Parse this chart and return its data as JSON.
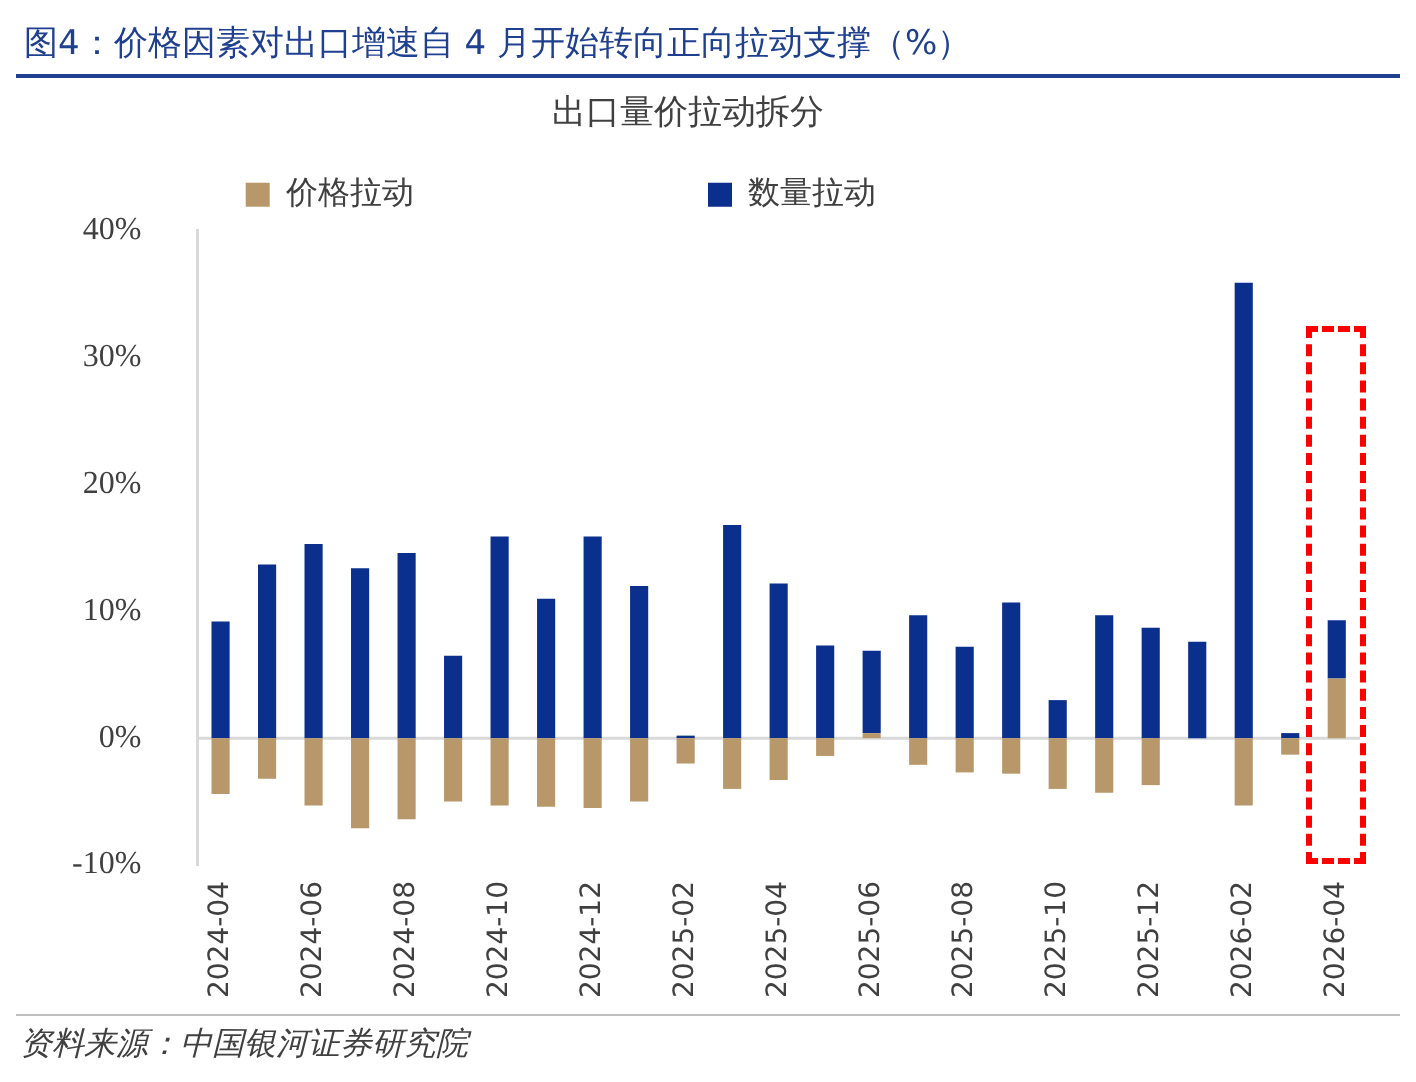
{
  "chart_data": {
    "type": "bar",
    "title": "图4：价格因素对出口增速自 4 月开始转向正向拉动支撑（%）",
    "subtitle": "出口量价拉动拆分",
    "categories": [
      "2024-04",
      null,
      "2024-06",
      null,
      "2024-08",
      null,
      "2024-10",
      null,
      "2024-12",
      null,
      "2025-02",
      null,
      "2025-04",
      null,
      "2025-06",
      null,
      "2025-08",
      null,
      "2025-10",
      null,
      "2025-12",
      null,
      "2026-02",
      null,
      "2026-04"
    ],
    "series": [
      {
        "name": "价格拉动",
        "color": "#b8986a",
        "values": [
          -4.4,
          -3.2,
          -5.3,
          -7.1,
          -6.4,
          -5.0,
          -5.3,
          -5.4,
          -5.5,
          -5.0,
          -2.0,
          -4.0,
          -3.3,
          -1.4,
          0.4,
          -2.1,
          -2.7,
          -2.8,
          -4.0,
          -4.3,
          -3.7,
          0,
          -5.3,
          -1.3,
          4.7
        ]
      },
      {
        "name": "数量拉动",
        "color": "#0a2f8c",
        "values": [
          9.2,
          13.7,
          15.3,
          13.4,
          14.6,
          6.5,
          15.9,
          11.0,
          15.9,
          12.0,
          0.2,
          16.8,
          12.2,
          7.3,
          6.5,
          9.7,
          7.2,
          10.7,
          3.0,
          9.7,
          8.7,
          7.6,
          35.9,
          0.4,
          4.6
        ]
      }
    ],
    "stacked": true,
    "ylim": [
      -10,
      40
    ],
    "yticks": [
      {
        "value": -10,
        "label": "-10%"
      },
      {
        "value": 0,
        "label": "0%"
      },
      {
        "value": 10,
        "label": "10%"
      },
      {
        "value": 20,
        "label": "20%"
      },
      {
        "value": 30,
        "label": "30%"
      },
      {
        "value": 40,
        "label": "40%"
      }
    ],
    "grid": false,
    "legend": "top",
    "ref_lines": [
      {
        "axis": "y",
        "value": 0,
        "color": "#d9d9d9"
      }
    ],
    "annotations": [
      "资料来源：中国银河证券研究院"
    ]
  }
}
